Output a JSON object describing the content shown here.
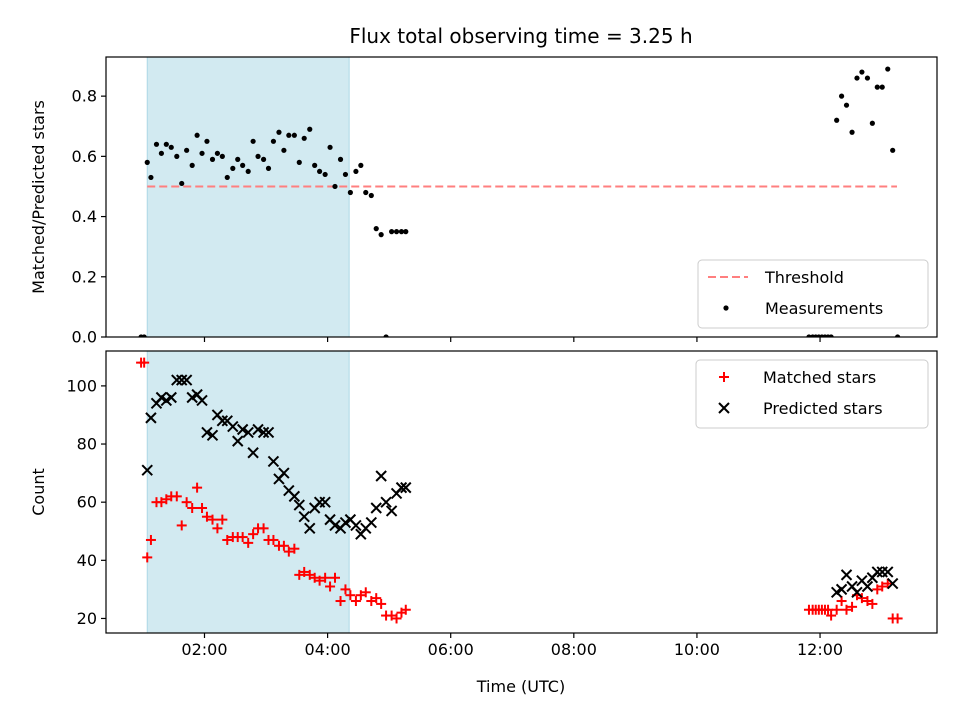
{
  "title": "Flux total observing time = 3.25 h",
  "xlabel": "Time (UTC)",
  "colors": {
    "threshold": "#ff7f7f",
    "measurement": "#000000",
    "matched": "#ff0000",
    "predicted": "#000000",
    "highlight": "#add8e6"
  },
  "chart_data": [
    {
      "type": "scatter",
      "ylabel": "Matched/Predicted stars",
      "xlim": [
        0.4,
        13.9
      ],
      "ylim": [
        0,
        0.93
      ],
      "yticks": [
        0.0,
        0.2,
        0.4,
        0.6,
        0.8
      ],
      "ytick_labels": [
        "0.0",
        "0.2",
        "0.4",
        "0.6",
        "0.8"
      ],
      "xticks": [
        2,
        4,
        6,
        8,
        10,
        12
      ],
      "xtick_labels": [
        "",
        "",
        "",
        "",
        "",
        ""
      ],
      "highlight": {
        "x0": 1.07,
        "x1": 4.35
      },
      "legend": {
        "loc": "lower-right",
        "entries": [
          "Threshold",
          "Measurements"
        ]
      },
      "threshold": {
        "name": "Threshold",
        "x": [
          1.07,
          13.25
        ],
        "y": [
          0.5,
          0.5
        ]
      },
      "series": [
        {
          "name": "Measurements",
          "x": [
            0.97,
            1.02,
            1.07,
            1.13,
            1.22,
            1.3,
            1.38,
            1.46,
            1.55,
            1.63,
            1.71,
            1.8,
            1.88,
            1.96,
            2.04,
            2.13,
            2.21,
            2.29,
            2.37,
            2.46,
            2.54,
            2.62,
            2.71,
            2.79,
            2.87,
            2.96,
            3.04,
            3.12,
            3.21,
            3.29,
            3.37,
            3.46,
            3.54,
            3.62,
            3.71,
            3.79,
            3.87,
            3.96,
            4.04,
            4.12,
            4.21,
            4.29,
            4.37,
            4.46,
            4.54,
            4.62,
            4.71,
            4.79,
            4.87,
            4.95,
            5.04,
            5.12,
            5.2,
            5.27,
            11.82,
            11.88,
            11.93,
            11.98,
            12.03,
            12.08,
            12.13,
            12.18,
            12.27,
            12.35,
            12.43,
            12.52,
            12.6,
            12.68,
            12.77,
            12.85,
            12.93,
            13.01,
            13.1,
            13.18,
            13.26
          ],
          "y": [
            0.0,
            0.0,
            0.58,
            0.53,
            0.64,
            0.61,
            0.64,
            0.63,
            0.6,
            0.51,
            0.62,
            0.57,
            0.67,
            0.61,
            0.65,
            0.59,
            0.61,
            0.6,
            0.53,
            0.56,
            0.59,
            0.57,
            0.55,
            0.65,
            0.6,
            0.59,
            0.56,
            0.65,
            0.68,
            0.62,
            0.67,
            0.67,
            0.58,
            0.66,
            0.69,
            0.57,
            0.55,
            0.54,
            0.63,
            0.5,
            0.59,
            0.54,
            0.48,
            0.55,
            0.57,
            0.48,
            0.47,
            0.36,
            0.34,
            0.0,
            0.35,
            0.35,
            0.35,
            0.35,
            0.0,
            0.0,
            0.0,
            0.0,
            0.0,
            0.0,
            0.0,
            0.0,
            0.72,
            0.8,
            0.77,
            0.68,
            0.86,
            0.88,
            0.86,
            0.71,
            0.83,
            0.83,
            0.89,
            0.62,
            0.0
          ]
        }
      ]
    },
    {
      "type": "scatter",
      "ylabel": "Count",
      "xlim": [
        0.4,
        13.9
      ],
      "ylim": [
        15,
        112
      ],
      "yticks": [
        20,
        40,
        60,
        80,
        100
      ],
      "ytick_labels": [
        "20",
        "40",
        "60",
        "80",
        "100"
      ],
      "xticks": [
        2,
        4,
        6,
        8,
        10,
        12
      ],
      "xtick_labels": [
        "02:00",
        "04:00",
        "06:00",
        "08:00",
        "10:00",
        "12:00"
      ],
      "highlight": {
        "x0": 1.07,
        "x1": 4.35
      },
      "legend": {
        "loc": "upper-right",
        "entries": [
          "Matched stars",
          "Predicted stars"
        ]
      },
      "series": [
        {
          "name": "Matched stars",
          "marker": "plus",
          "x": [
            0.97,
            1.02,
            1.07,
            1.13,
            1.22,
            1.3,
            1.38,
            1.46,
            1.55,
            1.63,
            1.71,
            1.8,
            1.88,
            1.96,
            2.04,
            2.13,
            2.21,
            2.29,
            2.37,
            2.46,
            2.54,
            2.62,
            2.71,
            2.79,
            2.87,
            2.96,
            3.04,
            3.12,
            3.21,
            3.29,
            3.37,
            3.46,
            3.54,
            3.62,
            3.71,
            3.79,
            3.87,
            3.96,
            4.04,
            4.12,
            4.21,
            4.29,
            4.37,
            4.46,
            4.54,
            4.62,
            4.71,
            4.79,
            4.87,
            4.95,
            5.04,
            5.12,
            5.2,
            5.27,
            11.82,
            11.88,
            11.93,
            11.98,
            12.03,
            12.08,
            12.13,
            12.18,
            12.27,
            12.35,
            12.43,
            12.52,
            12.6,
            12.68,
            12.77,
            12.85,
            12.93,
            13.01,
            13.1,
            13.18,
            13.26
          ],
          "y": [
            108,
            108,
            41,
            47,
            60,
            60,
            61,
            62,
            62,
            52,
            60,
            58,
            65,
            58,
            55,
            54,
            51,
            54,
            47,
            48,
            48,
            48,
            46,
            49,
            51,
            51,
            47,
            47,
            45,
            45,
            43,
            44,
            35,
            36,
            35,
            34,
            33,
            34,
            31,
            34,
            26,
            30,
            28,
            26,
            28,
            29,
            26,
            27,
            25,
            21,
            21,
            20,
            22,
            23,
            23,
            23,
            23,
            23,
            23,
            23,
            23,
            21,
            23,
            26,
            23,
            24,
            28,
            27,
            26,
            25,
            30,
            31,
            32,
            20,
            20
          ]
        },
        {
          "name": "Predicted stars",
          "marker": "x",
          "x": [
            1.07,
            1.13,
            1.22,
            1.3,
            1.38,
            1.46,
            1.55,
            1.63,
            1.71,
            1.8,
            1.88,
            1.96,
            2.04,
            2.13,
            2.21,
            2.29,
            2.37,
            2.46,
            2.54,
            2.62,
            2.71,
            2.79,
            2.87,
            2.96,
            3.04,
            3.12,
            3.21,
            3.29,
            3.37,
            3.46,
            3.54,
            3.62,
            3.71,
            3.79,
            3.87,
            3.96,
            4.04,
            4.12,
            4.21,
            4.29,
            4.37,
            4.46,
            4.54,
            4.62,
            4.71,
            4.79,
            4.87,
            4.95,
            5.04,
            5.12,
            5.2,
            5.27,
            12.27,
            12.35,
            12.43,
            12.52,
            12.6,
            12.68,
            12.77,
            12.85,
            12.93,
            13.01,
            13.1,
            13.18
          ],
          "y": [
            71,
            89,
            94,
            96,
            95,
            96,
            102,
            102,
            102,
            96,
            97,
            95,
            84,
            83,
            90,
            88,
            88,
            86,
            81,
            85,
            84,
            77,
            85,
            84,
            84,
            74,
            68,
            70,
            64,
            62,
            59,
            55,
            51,
            58,
            60,
            60,
            54,
            52,
            51,
            53,
            54,
            52,
            49,
            51,
            53,
            58,
            69,
            60,
            57,
            63,
            65,
            65,
            29,
            30,
            35,
            31,
            29,
            33,
            31,
            34,
            36,
            36,
            36,
            32
          ]
        }
      ]
    }
  ]
}
